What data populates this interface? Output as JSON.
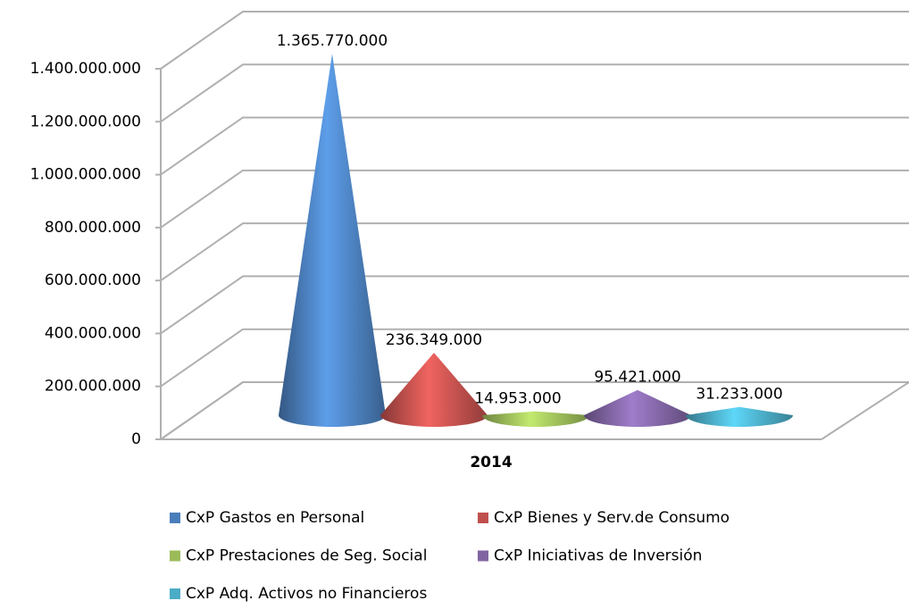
{
  "chart_data": {
    "type": "cone",
    "categories": [
      "2014"
    ],
    "series": [
      {
        "name": "CxP Gastos  en Personal",
        "color": "#4a7ebb",
        "values": [
          1365770000
        ],
        "value_labels": [
          "1.365.770.000"
        ]
      },
      {
        "name": "CxP Bienes y Serv.de Consumo",
        "color": "#c0504d",
        "values": [
          236349000
        ],
        "value_labels": [
          "236.349.000"
        ]
      },
      {
        "name": "CxP Prestaciones de Seg. Social",
        "color": "#9bbb59",
        "values": [
          14953000
        ],
        "value_labels": [
          "14.953.000"
        ]
      },
      {
        "name": "CxP Iniciativas de Inversión",
        "color": "#8064a2",
        "values": [
          95421000
        ],
        "value_labels": [
          "95.421.000"
        ]
      },
      {
        "name": "CxP Adq. Activos no Financieros",
        "color": "#4bacc6",
        "values": [
          31233000
        ],
        "value_labels": [
          "31.233.000"
        ]
      }
    ],
    "ylim": [
      0,
      1400000000
    ],
    "yticks": [
      0,
      {
        "value": 200000000,
        "label": "200.000.000"
      },
      {
        "value": 400000000,
        "label": "400.000.000"
      },
      {
        "value": 600000000,
        "label": "600.000.000"
      },
      {
        "value": 800000000,
        "label": "800.000.000"
      },
      {
        "value": 1000000000,
        "label": "1.000.000.000"
      },
      {
        "value": 1200000000,
        "label": "1.200.000.000"
      },
      {
        "value": 1400000000,
        "label": "1.400.000.000"
      }
    ],
    "grid": true
  }
}
